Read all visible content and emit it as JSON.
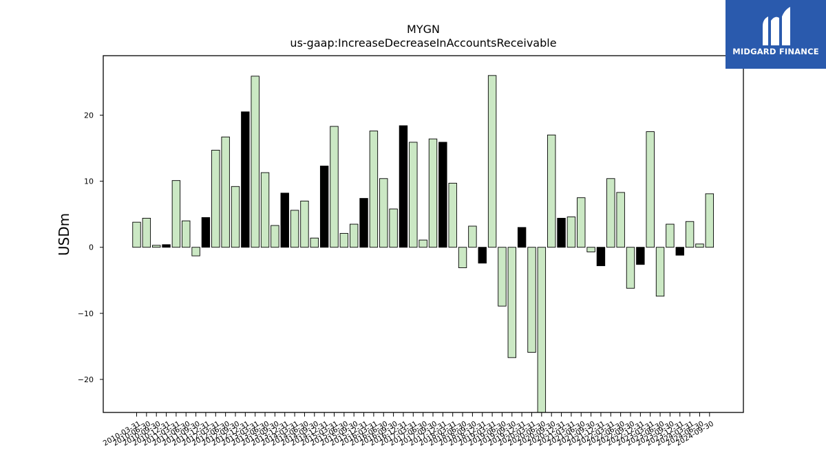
{
  "chart_data": {
    "type": "bar",
    "title": "MYGN",
    "subtitle": "us-gaap:IncreaseDecreaseInAccountsReceivable",
    "xlabel": "",
    "ylabel": "USDm",
    "ylim": [
      -25,
      29
    ],
    "yticks": [
      -20,
      -10,
      0,
      10,
      20
    ],
    "ytick_labels": [
      "−20",
      "−10",
      "0",
      "10",
      "20"
    ],
    "grid": false,
    "colors": {
      "positive_change": "#cbe8c4",
      "negative_change": "#000000",
      "edge": "#000000"
    },
    "categories": [
      "2010-03-31",
      "2010-06-30",
      "2010-09-30",
      "2010-12-31",
      "2011-03-31",
      "2011-06-30",
      "2011-09-30",
      "2011-12-31",
      "2012-03-31",
      "2012-06-30",
      "2012-09-30",
      "2012-12-31",
      "2013-03-31",
      "2013-06-30",
      "2013-09-30",
      "2013-12-31",
      "2014-03-31",
      "2014-06-30",
      "2014-09-30",
      "2014-12-31",
      "2015-03-31",
      "2015-06-30",
      "2015-09-30",
      "2015-12-31",
      "2016-03-31",
      "2016-06-30",
      "2016-09-30",
      "2016-12-31",
      "2017-03-31",
      "2017-06-30",
      "2017-09-30",
      "2017-12-31",
      "2018-03-31",
      "2018-06-30",
      "2018-09-30",
      "2018-12-31",
      "2019-03-31",
      "2019-06-30",
      "2019-09-30",
      "2019-12-31",
      "2020-03-31",
      "2020-06-30",
      "2020-09-30",
      "2020-12-31",
      "2021-03-31",
      "2021-06-30",
      "2021-09-30",
      "2021-12-31",
      "2022-03-31",
      "2022-06-30",
      "2022-09-30",
      "2022-12-31",
      "2023-03-31",
      "2023-06-30",
      "2023-09-30",
      "2023-12-31",
      "2024-03-31",
      "2024-06-30",
      "2024-09-30"
    ],
    "values": [
      3.8,
      4.4,
      0.3,
      0.4,
      10.1,
      4.0,
      -1.3,
      4.5,
      14.7,
      16.7,
      9.2,
      20.5,
      25.9,
      11.3,
      3.3,
      8.2,
      5.6,
      7.0,
      1.4,
      12.3,
      18.3,
      2.1,
      3.5,
      7.4,
      17.6,
      10.4,
      5.8,
      18.4,
      15.9,
      1.1,
      16.4,
      15.9,
      9.7,
      -3.1,
      3.2,
      -2.4,
      26.0,
      -8.9,
      -16.7,
      3.0,
      -15.9,
      -26.0,
      17.0,
      4.4,
      4.6,
      7.5,
      -0.7,
      -2.8,
      10.4,
      8.3,
      -6.2,
      -2.6,
      17.5,
      -7.4,
      3.5,
      -1.2,
      3.9,
      0.5,
      8.1
    ],
    "bar_colors": [
      "green",
      "green",
      "green",
      "black",
      "green",
      "green",
      "green",
      "black",
      "green",
      "green",
      "green",
      "black",
      "green",
      "green",
      "green",
      "black",
      "green",
      "green",
      "green",
      "black",
      "green",
      "green",
      "green",
      "black",
      "green",
      "green",
      "green",
      "black",
      "green",
      "green",
      "green",
      "black",
      "green",
      "green",
      "green",
      "black",
      "green",
      "green",
      "green",
      "black",
      "green",
      "green",
      "green",
      "black",
      "green",
      "green",
      "green",
      "black",
      "green",
      "green",
      "green",
      "black",
      "green",
      "green",
      "green",
      "black",
      "green",
      "green",
      "green"
    ]
  },
  "logo": {
    "text": "MIDGARD FINANCE",
    "icon": "midgard-logo-icon"
  }
}
